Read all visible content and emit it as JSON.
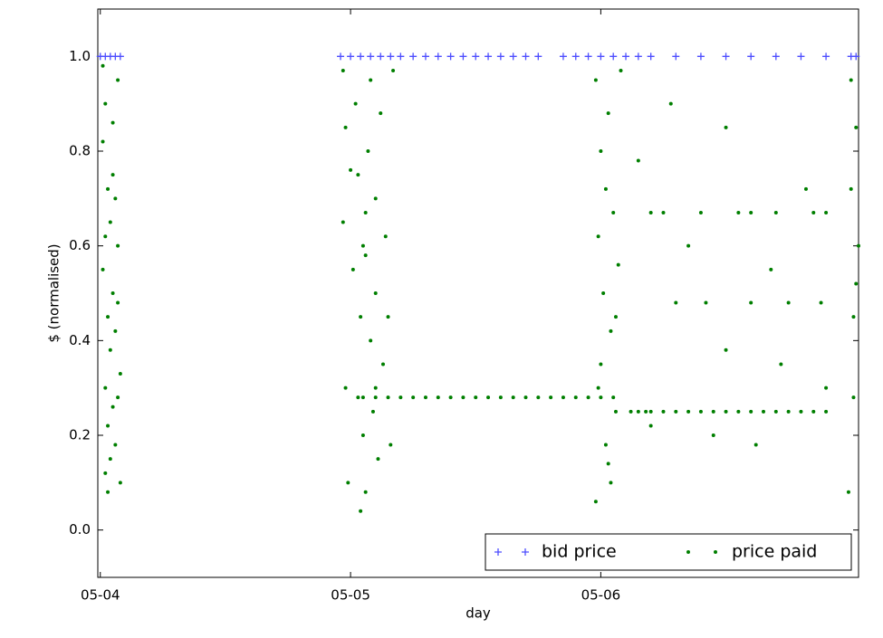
{
  "chart_data": {
    "type": "scatter",
    "xlabel": "day",
    "ylabel": "$ (normalised)",
    "xlim": [
      -0.01,
      3.03
    ],
    "ylim": [
      -0.1,
      1.1
    ],
    "xticks": [
      {
        "value": 0,
        "label": "05-04"
      },
      {
        "value": 1,
        "label": "05-05"
      },
      {
        "value": 2,
        "label": "05-06"
      }
    ],
    "yticks": [
      {
        "value": 0,
        "label": "0.0"
      },
      {
        "value": 0.2,
        "label": "0.2"
      },
      {
        "value": 0.4,
        "label": "0.4"
      },
      {
        "value": 0.6,
        "label": "0.6"
      },
      {
        "value": 0.8,
        "label": "0.8"
      },
      {
        "value": 1,
        "label": "1.0"
      }
    ],
    "legend": "lower right",
    "series": [
      {
        "name": "bid price",
        "color": "#4d4dff",
        "marker": "+",
        "x": [
          0.0,
          0.02,
          0.04,
          0.06,
          0.08,
          0.96,
          1.0,
          1.04,
          1.08,
          1.12,
          1.16,
          1.2,
          1.25,
          1.3,
          1.35,
          1.4,
          1.45,
          1.5,
          1.55,
          1.6,
          1.65,
          1.7,
          1.75,
          1.85,
          1.9,
          1.95,
          2.0,
          2.05,
          2.1,
          2.15,
          2.2,
          2.3,
          2.4,
          2.5,
          2.6,
          2.7,
          2.8,
          2.9,
          3.0,
          3.02
        ],
        "y": [
          1,
          1,
          1,
          1,
          1,
          1,
          1,
          1,
          1,
          1,
          1,
          1,
          1,
          1,
          1,
          1,
          1,
          1,
          1,
          1,
          1,
          1,
          1,
          1,
          1,
          1,
          1,
          1,
          1,
          1,
          1,
          1,
          1,
          1,
          1,
          1,
          1,
          1,
          1,
          1
        ]
      },
      {
        "name": "price paid",
        "color": "#007f00",
        "marker": ".",
        "x": [
          0.01,
          0.01,
          0.01,
          0.02,
          0.02,
          0.02,
          0.03,
          0.03,
          0.03,
          0.03,
          0.04,
          0.04,
          0.04,
          0.05,
          0.05,
          0.05,
          0.06,
          0.06,
          0.06,
          0.07,
          0.07,
          0.07,
          0.08,
          0.08,
          0.02,
          0.05,
          0.07,
          0.97,
          0.97,
          0.98,
          0.98,
          0.99,
          1.01,
          1.02,
          1.03,
          1.03,
          1.04,
          1.05,
          1.05,
          1.06,
          1.06,
          1.07,
          1.08,
          1.08,
          1.09,
          1.1,
          1.1,
          1.11,
          1.12,
          1.13,
          1.14,
          1.15,
          1.16,
          1.17,
          1.04,
          1.06,
          1.1,
          1.0,
          1.05,
          1.1,
          1.15,
          1.2,
          1.25,
          1.3,
          1.35,
          1.4,
          1.45,
          1.5,
          1.55,
          1.6,
          1.65,
          1.7,
          1.75,
          1.8,
          1.85,
          1.9,
          1.95,
          2.0,
          2.05,
          1.98,
          1.98,
          1.99,
          2.0,
          2.0,
          2.01,
          2.02,
          2.02,
          2.03,
          2.04,
          2.04,
          2.05,
          2.06,
          2.07,
          2.08,
          1.99,
          2.03,
          2.06,
          2.12,
          2.15,
          2.18,
          2.2,
          2.25,
          2.3,
          2.35,
          2.4,
          2.45,
          2.5,
          2.55,
          2.6,
          2.65,
          2.7,
          2.75,
          2.8,
          2.85,
          2.9,
          2.2,
          2.25,
          2.4,
          2.55,
          2.6,
          2.7,
          2.85,
          2.9,
          2.3,
          2.42,
          2.6,
          2.75,
          2.88,
          2.15,
          2.35,
          2.5,
          2.68,
          2.82,
          2.2,
          2.45,
          2.62,
          2.9,
          2.28,
          2.5,
          2.72,
          2.99,
          3.0,
          3.0,
          3.01,
          3.01,
          3.02,
          3.02,
          3.03
        ],
        "y": [
          0.98,
          0.82,
          0.55,
          0.9,
          0.3,
          0.12,
          0.72,
          0.45,
          0.22,
          0.08,
          0.65,
          0.38,
          0.15,
          0.86,
          0.5,
          0.26,
          0.7,
          0.42,
          0.18,
          0.95,
          0.6,
          0.28,
          0.33,
          0.1,
          0.62,
          0.75,
          0.48,
          0.97,
          0.65,
          0.85,
          0.3,
          0.1,
          0.55,
          0.9,
          0.75,
          0.28,
          0.45,
          0.6,
          0.2,
          0.67,
          0.08,
          0.8,
          0.4,
          0.95,
          0.25,
          0.7,
          0.5,
          0.15,
          0.88,
          0.35,
          0.62,
          0.45,
          0.18,
          0.97,
          0.04,
          0.58,
          0.3,
          0.76,
          0.28,
          0.28,
          0.28,
          0.28,
          0.28,
          0.28,
          0.28,
          0.28,
          0.28,
          0.28,
          0.28,
          0.28,
          0.28,
          0.28,
          0.28,
          0.28,
          0.28,
          0.28,
          0.28,
          0.28,
          0.28,
          0.95,
          0.06,
          0.62,
          0.8,
          0.35,
          0.5,
          0.72,
          0.18,
          0.88,
          0.42,
          0.1,
          0.67,
          0.25,
          0.56,
          0.97,
          0.3,
          0.14,
          0.45,
          0.25,
          0.25,
          0.25,
          0.25,
          0.25,
          0.25,
          0.25,
          0.25,
          0.25,
          0.25,
          0.25,
          0.25,
          0.25,
          0.25,
          0.25,
          0.25,
          0.25,
          0.25,
          0.67,
          0.67,
          0.67,
          0.67,
          0.67,
          0.67,
          0.67,
          0.67,
          0.48,
          0.48,
          0.48,
          0.48,
          0.48,
          0.78,
          0.6,
          0.38,
          0.55,
          0.72,
          0.22,
          0.2,
          0.18,
          0.3,
          0.9,
          0.85,
          0.35,
          0.08,
          0.72,
          0.95,
          0.45,
          0.28,
          0.85,
          0.52,
          0.6
        ]
      }
    ]
  }
}
